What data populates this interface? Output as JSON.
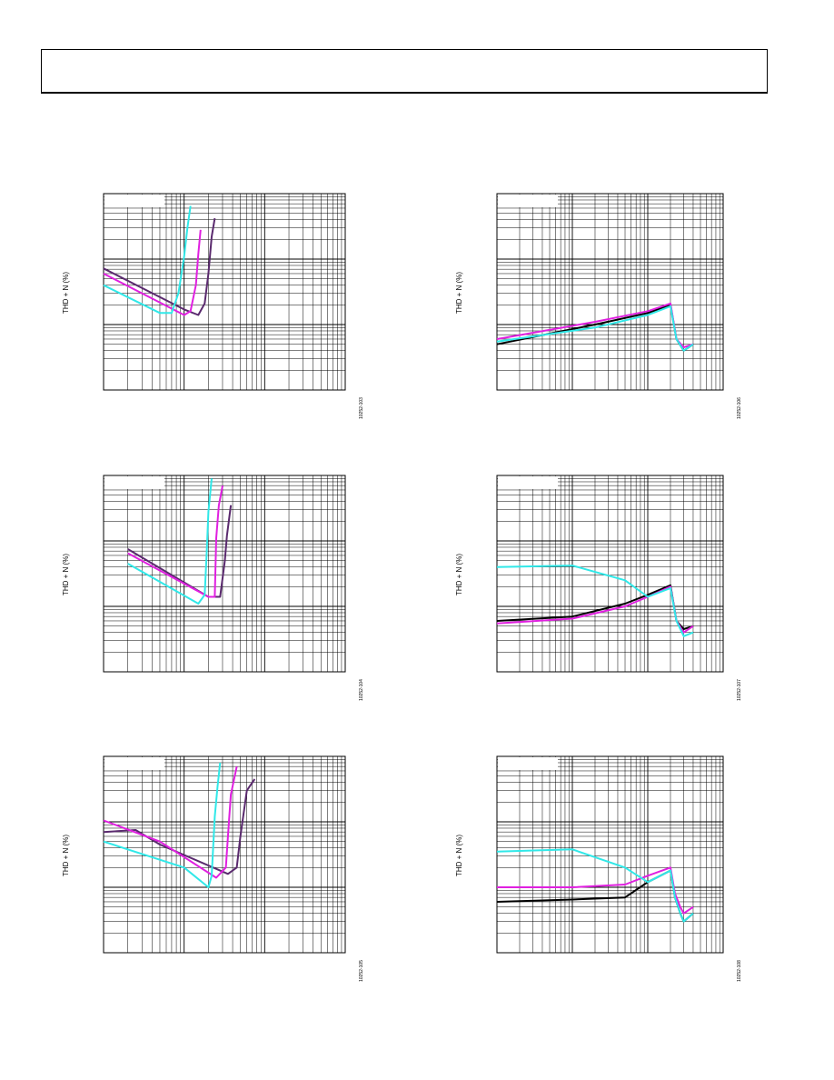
{
  "chart_data": [
    {
      "type": "line",
      "ylabel": "THD + N (%)",
      "figure_id": "10252-103",
      "series": [
        {
          "color": "#5a2a6e",
          "points": [
            [
              0.01,
              0.72
            ],
            [
              0.1,
              0.17
            ],
            [
              0.15,
              0.14
            ],
            [
              0.18,
              0.21
            ],
            [
              0.2,
              0.6
            ],
            [
              0.22,
              2.2
            ],
            [
              0.24,
              4.2
            ]
          ]
        },
        {
          "color": "#e020e0",
          "points": [
            [
              0.01,
              0.6
            ],
            [
              0.1,
              0.14
            ],
            [
              0.12,
              0.16
            ],
            [
              0.14,
              0.4
            ],
            [
              0.15,
              1.2
            ],
            [
              0.16,
              2.8
            ]
          ]
        },
        {
          "color": "#30e8e8",
          "points": [
            [
              0.01,
              0.4
            ],
            [
              0.05,
              0.15
            ],
            [
              0.07,
              0.15
            ],
            [
              0.085,
              0.3
            ],
            [
              0.1,
              1.1
            ],
            [
              0.11,
              3.0
            ],
            [
              0.12,
              6.5
            ]
          ]
        }
      ]
    },
    {
      "type": "line",
      "ylabel": "THD + N (%)",
      "figure_id": "10252-104",
      "series": [
        {
          "color": "#5a2a6e",
          "points": [
            [
              0.02,
              0.75
            ],
            [
              0.2,
              0.14
            ],
            [
              0.28,
              0.14
            ],
            [
              0.32,
              0.5
            ],
            [
              0.34,
              1.2
            ],
            [
              0.38,
              3.5
            ]
          ]
        },
        {
          "color": "#e020e0",
          "points": [
            [
              0.02,
              0.65
            ],
            [
              0.2,
              0.14
            ],
            [
              0.24,
              0.14
            ],
            [
              0.25,
              1.1
            ],
            [
              0.27,
              3.5
            ],
            [
              0.3,
              7.0
            ]
          ]
        },
        {
          "color": "#30e8e8",
          "points": [
            [
              0.02,
              0.45
            ],
            [
              0.15,
              0.11
            ],
            [
              0.18,
              0.15
            ],
            [
              0.19,
              0.6
            ],
            [
              0.2,
              2.8
            ],
            [
              0.22,
              9.0
            ]
          ]
        }
      ]
    },
    {
      "type": "line",
      "ylabel": "THD + N (%)",
      "figure_id": "10252-105",
      "series": [
        {
          "color": "#5a2a6e",
          "points": [
            [
              0.01,
              0.7
            ],
            [
              0.025,
              0.75
            ],
            [
              0.05,
              0.45
            ],
            [
              0.35,
              0.16
            ],
            [
              0.45,
              0.2
            ],
            [
              0.5,
              0.6
            ],
            [
              0.6,
              3.0
            ],
            [
              0.75,
              4.5
            ]
          ]
        },
        {
          "color": "#e020e0",
          "points": [
            [
              0.01,
              1.05
            ],
            [
              0.05,
              0.5
            ],
            [
              0.25,
              0.14
            ],
            [
              0.33,
              0.2
            ],
            [
              0.36,
              1.0
            ],
            [
              0.38,
              2.6
            ],
            [
              0.45,
              7.0
            ]
          ]
        },
        {
          "color": "#30e8e8",
          "points": [
            [
              0.01,
              0.5
            ],
            [
              0.1,
              0.2
            ],
            [
              0.2,
              0.1
            ],
            [
              0.22,
              0.15
            ],
            [
              0.24,
              1.2
            ],
            [
              0.26,
              3.5
            ],
            [
              0.28,
              8.0
            ]
          ]
        }
      ]
    },
    {
      "type": "line",
      "ylabel": "THD + N (%)",
      "figure_id": "10252-106",
      "series": [
        {
          "color": "#000000",
          "points": [
            [
              0.01,
              0.05
            ],
            [
              0.2,
              0.1
            ],
            [
              1.0,
              0.15
            ],
            [
              2.0,
              0.2
            ],
            [
              2.4,
              0.06
            ],
            [
              3,
              0.04
            ],
            [
              4,
              0.05
            ]
          ]
        },
        {
          "color": "#e020e0",
          "points": [
            [
              0.01,
              0.06
            ],
            [
              0.2,
              0.11
            ],
            [
              1.0,
              0.16
            ],
            [
              2.0,
              0.21
            ],
            [
              2.4,
              0.06
            ],
            [
              3,
              0.045
            ],
            [
              4,
              0.05
            ]
          ]
        },
        {
          "color": "#30e8e8",
          "points": [
            [
              0.01,
              0.055
            ],
            [
              0.2,
              0.09
            ],
            [
              1.0,
              0.14
            ],
            [
              2.0,
              0.19
            ],
            [
              2.4,
              0.06
            ],
            [
              3,
              0.04
            ],
            [
              4,
              0.05
            ]
          ]
        }
      ]
    },
    {
      "type": "line",
      "ylabel": "THD + N (%)",
      "figure_id": "10252-107",
      "series": [
        {
          "color": "#000000",
          "points": [
            [
              0.01,
              0.06
            ],
            [
              0.1,
              0.07
            ],
            [
              0.5,
              0.11
            ],
            [
              1.0,
              0.15
            ],
            [
              2.0,
              0.21
            ],
            [
              2.4,
              0.06
            ],
            [
              3,
              0.045
            ],
            [
              4,
              0.05
            ]
          ]
        },
        {
          "color": "#e020e0",
          "points": [
            [
              0.01,
              0.055
            ],
            [
              0.1,
              0.065
            ],
            [
              0.5,
              0.1
            ],
            [
              1.0,
              0.14
            ],
            [
              2.0,
              0.2
            ],
            [
              2.4,
              0.06
            ],
            [
              3,
              0.04
            ],
            [
              4,
              0.05
            ]
          ]
        },
        {
          "color": "#30e8e8",
          "points": [
            [
              0.01,
              0.4
            ],
            [
              0.1,
              0.42
            ],
            [
              0.5,
              0.25
            ],
            [
              1.0,
              0.14
            ],
            [
              2.0,
              0.19
            ],
            [
              2.4,
              0.06
            ],
            [
              3,
              0.035
            ],
            [
              4,
              0.04
            ]
          ]
        }
      ]
    },
    {
      "type": "line",
      "ylabel": "THD + N (%)",
      "figure_id": "10252-108",
      "series": [
        {
          "color": "#000000",
          "points": [
            [
              0.01,
              0.06
            ],
            [
              0.1,
              0.065
            ],
            [
              0.5,
              0.07
            ],
            [
              1.0,
              0.12
            ],
            [
              2.0,
              0.18
            ],
            [
              2.3,
              0.07
            ],
            [
              2.7,
              0.04
            ],
            [
              3,
              0.03
            ],
            [
              4,
              0.04
            ]
          ]
        },
        {
          "color": "#e020e0",
          "points": [
            [
              0.01,
              0.1
            ],
            [
              0.1,
              0.1
            ],
            [
              0.5,
              0.11
            ],
            [
              1.0,
              0.15
            ],
            [
              2.0,
              0.2
            ],
            [
              2.3,
              0.08
            ],
            [
              2.7,
              0.05
            ],
            [
              3,
              0.04
            ],
            [
              4,
              0.05
            ]
          ]
        },
        {
          "color": "#30e8e8",
          "points": [
            [
              0.01,
              0.35
            ],
            [
              0.1,
              0.38
            ],
            [
              0.5,
              0.2
            ],
            [
              1.0,
              0.12
            ],
            [
              2.0,
              0.18
            ],
            [
              2.3,
              0.07
            ],
            [
              2.7,
              0.04
            ],
            [
              3,
              0.03
            ],
            [
              4,
              0.04
            ]
          ]
        }
      ]
    }
  ]
}
